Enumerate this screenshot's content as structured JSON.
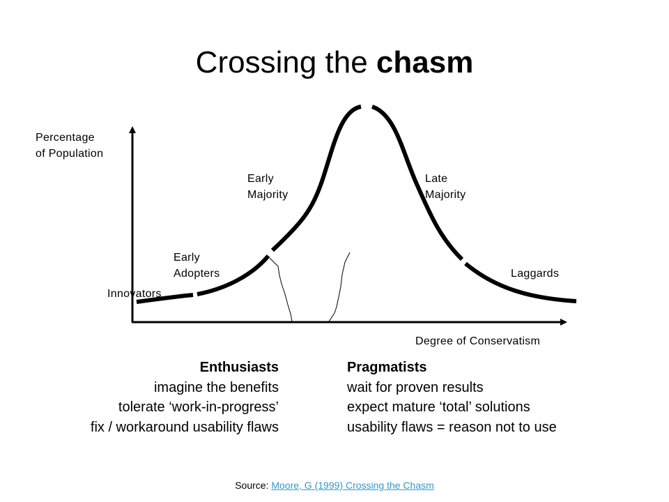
{
  "title": {
    "main": "Crossing the ",
    "emphasis": "chasm"
  },
  "axes": {
    "y_label_line1": "Percentage",
    "y_label_line2": "of Population",
    "x_label": "Degree of Conservatism"
  },
  "segments": {
    "innovators": "Innovators",
    "early_adopters_line1": "Early",
    "early_adopters_line2": "Adopters",
    "early_majority_line1": "Early",
    "early_majority_line2": "Majority",
    "late_majority_line1": "Late",
    "late_majority_line2": "Majority",
    "laggards": "Laggards"
  },
  "enthusiasts": {
    "heading": "Enthusiasts",
    "points": [
      "imagine the benefits",
      "tolerate ‘work-in-progress’",
      "fix / workaround usability flaws"
    ]
  },
  "pragmatists": {
    "heading": "Pragmatists",
    "points": [
      "wait for proven results",
      "expect mature ‘total’ solutions",
      "usability flaws = reason not to use"
    ]
  },
  "source": {
    "prefix": "Source: ",
    "link_text": "Moore, G (1999) Crossing the Chasm"
  },
  "colors": {
    "link": "#3399cc",
    "ink": "#000000"
  }
}
